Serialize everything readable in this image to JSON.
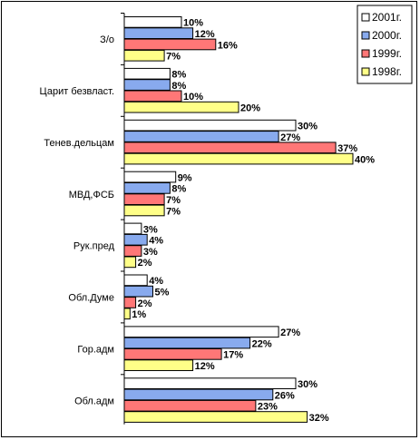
{
  "chart_data": {
    "type": "bar",
    "orientation": "horizontal",
    "categories": [
      "З/о",
      "Царит безвласт.",
      "Тенев.дельцам",
      "МВД,ФСБ",
      "Рук.пред",
      "Обл.Думе",
      "Гор.адм",
      "Обл.адм"
    ],
    "series": [
      {
        "name": "2001г.",
        "color": "#ffffff",
        "values": [
          10,
          8,
          30,
          9,
          3,
          4,
          27,
          30
        ],
        "labels": [
          "10%",
          "8%",
          "30%",
          "9%",
          "3%",
          "4%",
          "27%",
          "30%"
        ]
      },
      {
        "name": "2000г.",
        "color": "#88aaee",
        "values": [
          12,
          8,
          27,
          8,
          4,
          5,
          22,
          26
        ],
        "labels": [
          "12%",
          "8%",
          "27%",
          "8%",
          "4%",
          "5%",
          "22%",
          "26%"
        ]
      },
      {
        "name": "1999г.",
        "color": "#ff7777",
        "values": [
          16,
          10,
          37,
          7,
          3,
          2,
          17,
          23
        ],
        "labels": [
          "16%",
          "10%",
          "37%",
          "7%",
          "3%",
          "2%",
          "17%",
          "23%"
        ]
      },
      {
        "name": "1998г.",
        "color": "#ffff88",
        "values": [
          7,
          20,
          40,
          7,
          2,
          1,
          12,
          32
        ],
        "labels": [
          "7%",
          "20%",
          "40%",
          "7%",
          "2%",
          "1%",
          "12%",
          "32%"
        ]
      }
    ],
    "xlim": [
      0,
      40
    ],
    "grid": false,
    "legend_position": "top-right",
    "title": "",
    "xlabel": "",
    "ylabel": ""
  }
}
